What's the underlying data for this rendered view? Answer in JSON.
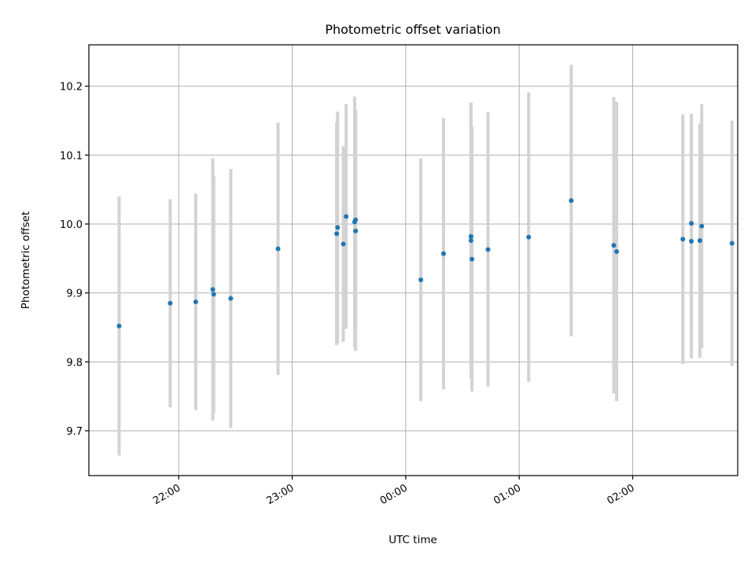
{
  "chart_data": {
    "type": "scatter",
    "title": "Photometric offset variation",
    "xlabel": "UTC time",
    "ylabel": "Photometric offset",
    "x_ticks": [
      {
        "label": "22:00",
        "t": 0
      },
      {
        "label": "23:00",
        "t": 60
      },
      {
        "label": "00:00",
        "t": 120
      },
      {
        "label": "01:00",
        "t": 180
      },
      {
        "label": "02:00",
        "t": 240
      }
    ],
    "y_ticks": [
      9.7,
      9.8,
      9.9,
      10.0,
      10.1,
      10.2
    ],
    "xlim_minutes": [
      -47.5,
      295.5
    ],
    "ylim": [
      9.635,
      10.26
    ],
    "grid": true,
    "point_color": "#1f77b4",
    "errorbar_color": "#d3d3d3",
    "points": [
      {
        "t": -31.5,
        "y": 9.852,
        "err": 0.188
      },
      {
        "t": -4.5,
        "y": 9.885,
        "err": 0.151
      },
      {
        "t": 9.0,
        "y": 9.887,
        "err": 0.157
      },
      {
        "t": 18.0,
        "y": 9.905,
        "err": 0.19
      },
      {
        "t": 18.5,
        "y": 9.898,
        "err": 0.172
      },
      {
        "t": 27.5,
        "y": 9.892,
        "err": 0.188
      },
      {
        "t": 52.5,
        "y": 9.964,
        "err": 0.183
      },
      {
        "t": 83.5,
        "y": 9.986,
        "err": 0.162
      },
      {
        "t": 84.0,
        "y": 9.995,
        "err": 0.168
      },
      {
        "t": 87.0,
        "y": 9.971,
        "err": 0.142
      },
      {
        "t": 88.5,
        "y": 10.011,
        "err": 0.163
      },
      {
        "t": 93.0,
        "y": 10.003,
        "err": 0.182
      },
      {
        "t": 93.5,
        "y": 10.006,
        "err": 0.16
      },
      {
        "t": 93.5,
        "y": 9.99,
        "err": 0.174
      },
      {
        "t": 128.0,
        "y": 9.919,
        "err": 0.176
      },
      {
        "t": 140.0,
        "y": 9.957,
        "err": 0.197
      },
      {
        "t": 154.5,
        "y": 9.982,
        "err": 0.194
      },
      {
        "t": 154.5,
        "y": 9.976,
        "err": 0.2
      },
      {
        "t": 155.0,
        "y": 9.949,
        "err": 0.192
      },
      {
        "t": 163.5,
        "y": 9.963,
        "err": 0.199
      },
      {
        "t": 185.0,
        "y": 9.981,
        "err": 0.21
      },
      {
        "t": 207.5,
        "y": 10.034,
        "err": 0.197
      },
      {
        "t": 230.0,
        "y": 9.969,
        "err": 0.215
      },
      {
        "t": 231.5,
        "y": 9.96,
        "err": 0.217
      },
      {
        "t": 266.5,
        "y": 9.978,
        "err": 0.181
      },
      {
        "t": 271.0,
        "y": 10.001,
        "err": 0.159
      },
      {
        "t": 271.0,
        "y": 9.975,
        "err": 0.17
      },
      {
        "t": 275.5,
        "y": 9.976,
        "err": 0.17
      },
      {
        "t": 276.5,
        "y": 9.997,
        "err": 0.177
      },
      {
        "t": 292.5,
        "y": 9.972,
        "err": 0.178
      }
    ]
  }
}
